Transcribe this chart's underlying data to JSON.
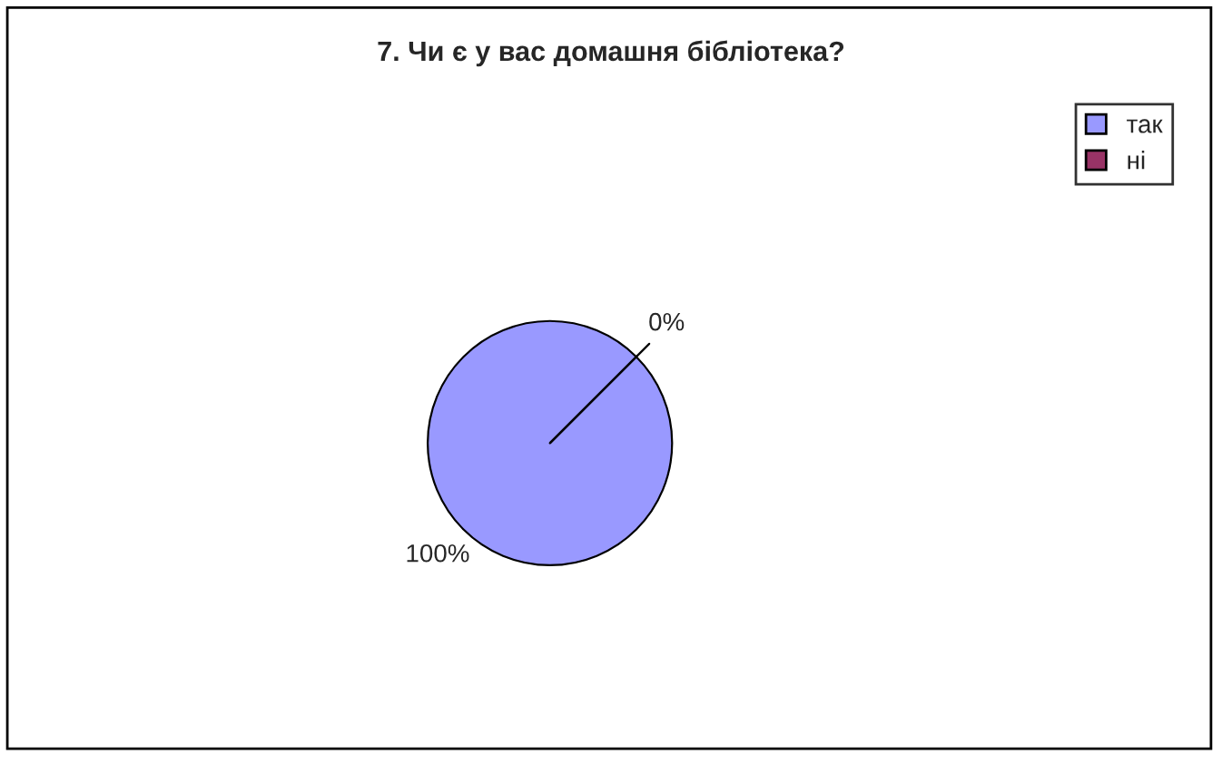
{
  "chart_data": {
    "type": "pie",
    "title": "7. Чи є у вас домашня бібліотека?",
    "categories": [
      "так",
      "ні"
    ],
    "values": [
      100,
      0
    ],
    "colors": [
      "#9999ff",
      "#993366"
    ],
    "value_labels": [
      "100%",
      "0%"
    ],
    "legend": "top right"
  }
}
